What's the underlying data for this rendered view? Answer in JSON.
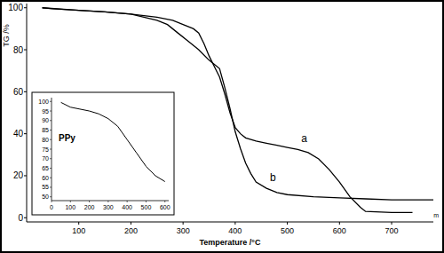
{
  "chart_data": [
    {
      "type": "line",
      "x_label": "Temperature /°C",
      "y_label": "TG /%",
      "xlim": [
        0,
        780
      ],
      "xticks": [
        100,
        200,
        300,
        400,
        500,
        600,
        700
      ],
      "ylim": [
        -2,
        102
      ],
      "yticks": [
        0,
        20,
        40,
        60,
        80,
        100
      ],
      "annotations": [
        "m"
      ],
      "series": [
        {
          "name": "a",
          "color": "#000000",
          "x": [
            30,
            50,
            100,
            150,
            200,
            250,
            280,
            300,
            320,
            330,
            340,
            350,
            360,
            370,
            380,
            390,
            400,
            410,
            420,
            440,
            460,
            480,
            500,
            520,
            540,
            560,
            580,
            600,
            620,
            640,
            650,
            700,
            740
          ],
          "values": [
            100,
            99.5,
            98.8,
            98,
            97,
            95.5,
            94,
            92,
            90,
            88,
            83,
            77,
            72,
            67,
            59,
            50,
            43,
            40,
            38,
            36.5,
            35.5,
            34.5,
            33.5,
            32.5,
            31,
            28,
            23,
            17,
            10,
            5,
            3,
            2.5,
            2.5
          ]
        },
        {
          "name": "b",
          "color": "#000000",
          "x": [
            30,
            100,
            150,
            200,
            250,
            270,
            290,
            310,
            330,
            350,
            360,
            370,
            380,
            390,
            400,
            410,
            420,
            430,
            440,
            460,
            480,
            500,
            550,
            600,
            650,
            700,
            780
          ],
          "values": [
            100,
            98.8,
            98,
            97,
            94,
            92,
            88,
            84,
            80,
            75,
            73,
            71,
            62,
            52,
            41,
            33,
            26,
            21,
            17,
            14,
            12,
            11,
            10,
            9.5,
            9,
            8.5,
            8.5
          ]
        }
      ]
    },
    {
      "type": "line",
      "title": "PPy",
      "color": "#000000",
      "xlim": [
        0,
        620
      ],
      "xticks": [
        0,
        100,
        200,
        300,
        400,
        500,
        600
      ],
      "ylim": [
        48,
        102
      ],
      "yticks": [
        50,
        55,
        60,
        65,
        70,
        75,
        80,
        85,
        90,
        95,
        100
      ],
      "x": [
        50,
        100,
        150,
        200,
        250,
        300,
        350,
        400,
        450,
        500,
        550,
        600
      ],
      "values": [
        99.5,
        97,
        96,
        95,
        93.5,
        91,
        87,
        80,
        73,
        66,
        61,
        58
      ]
    }
  ]
}
